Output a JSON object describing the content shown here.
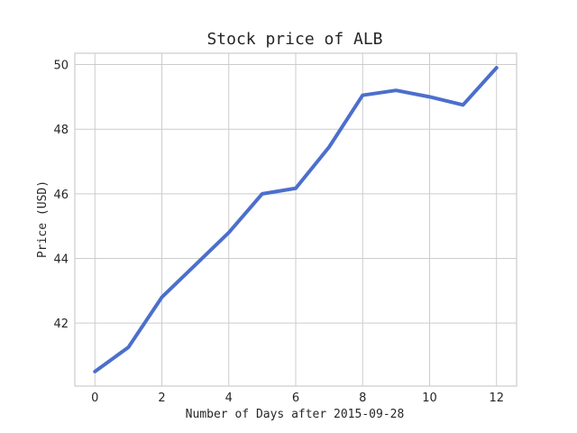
{
  "chart_data": {
    "type": "line",
    "title": "Stock price of ALB",
    "xlabel": "Number of Days after 2015-09-28",
    "ylabel": "Price (USD)",
    "xlim": [
      -0.6,
      12.6
    ],
    "ylim": [
      40.05,
      50.35
    ],
    "xticks": [
      0,
      2,
      4,
      6,
      8,
      10,
      12
    ],
    "yticks": [
      42,
      44,
      46,
      48,
      50
    ],
    "grid": true,
    "series": [
      {
        "color": "#4c6fcc",
        "x": [
          0,
          1,
          2,
          3,
          4,
          5,
          6,
          7,
          8,
          9,
          10,
          11,
          12
        ],
        "values": [
          40.5,
          41.25,
          42.8,
          43.8,
          44.8,
          46.0,
          46.17,
          47.45,
          49.05,
          49.2,
          49.0,
          48.75,
          49.9
        ]
      }
    ]
  }
}
